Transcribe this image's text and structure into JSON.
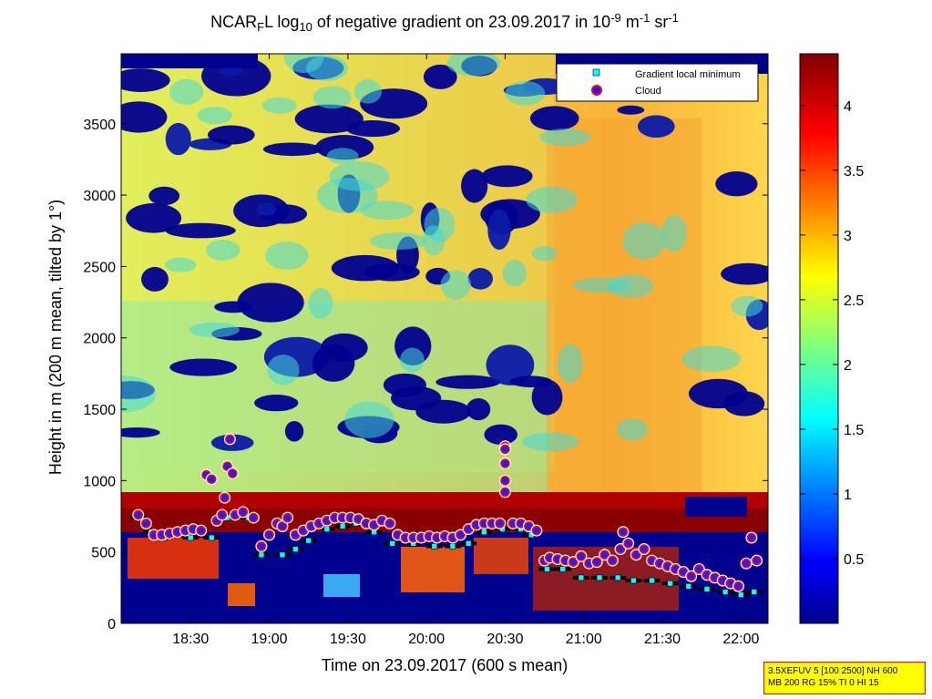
{
  "chart_data": {
    "type": "heatmap",
    "title": {
      "parts": [
        {
          "text": "NCAR",
          "style": "normal"
        },
        {
          "text": "F",
          "style": "sub"
        },
        {
          "text": "L log",
          "style": "normal"
        },
        {
          "text": "10",
          "style": "sub"
        },
        {
          "text": " of negative gradient on 23.09.2017 in 10",
          "style": "normal"
        },
        {
          "text": "-9",
          "style": "sup"
        },
        {
          "text": " m",
          "style": "normal"
        },
        {
          "text": "-1",
          "style": "sup"
        },
        {
          "text": " sr",
          "style": "normal"
        },
        {
          "text": "-1",
          "style": "sup"
        }
      ]
    },
    "xlabel": "Time on 23.09.2017 (600 s mean)",
    "ylabel": "Height in m (200 m mean, tilted by 1°)",
    "x_ticks": [
      "18:30",
      "19:00",
      "19:30",
      "20:00",
      "20:30",
      "21:00",
      "21:30",
      "22:00"
    ],
    "y_ticks": [
      "0",
      "500",
      "1000",
      "1500",
      "2000",
      "2500",
      "3000",
      "3500"
    ],
    "colorbar": {
      "ticks": [
        "0.5",
        "1",
        "1.5",
        "2",
        "2.5",
        "3",
        "3.5",
        "4"
      ],
      "range": [
        0,
        4.4
      ],
      "colormap": "jet"
    },
    "legend": {
      "placement": "top-right",
      "entries": [
        {
          "label": "Gradient local minimum",
          "marker": "square",
          "color": "#00ffff"
        },
        {
          "label": "Cloud",
          "marker": "circle",
          "color": "#ff0000"
        }
      ]
    },
    "gradient_local_minimum": [
      {
        "time": "18:10",
        "height": 740
      },
      {
        "time": "18:15",
        "height": 640
      },
      {
        "time": "18:20",
        "height": 600
      },
      {
        "time": "18:30",
        "height": 600
      },
      {
        "time": "18:38",
        "height": 600
      },
      {
        "time": "18:44",
        "height": 740
      },
      {
        "time": "18:52",
        "height": 740
      },
      {
        "time": "18:57",
        "height": 480
      },
      {
        "time": "19:05",
        "height": 480
      },
      {
        "time": "19:10",
        "height": 520
      },
      {
        "time": "19:15",
        "height": 580
      },
      {
        "time": "19:22",
        "height": 660
      },
      {
        "time": "19:28",
        "height": 680
      },
      {
        "time": "19:33",
        "height": 700
      },
      {
        "time": "19:40",
        "height": 640
      },
      {
        "time": "19:47",
        "height": 560
      },
      {
        "time": "19:55",
        "height": 560
      },
      {
        "time": "20:03",
        "height": 540
      },
      {
        "time": "20:10",
        "height": 540
      },
      {
        "time": "20:16",
        "height": 560
      },
      {
        "time": "20:22",
        "height": 640
      },
      {
        "time": "20:29",
        "height": 660
      },
      {
        "time": "20:36",
        "height": 660
      },
      {
        "time": "20:40",
        "height": 620
      },
      {
        "time": "20:46",
        "height": 380
      },
      {
        "time": "20:52",
        "height": 380
      },
      {
        "time": "20:59",
        "height": 320
      },
      {
        "time": "21:06",
        "height": 320
      },
      {
        "time": "21:13",
        "height": 320
      },
      {
        "time": "21:19",
        "height": 300
      },
      {
        "time": "21:26",
        "height": 300
      },
      {
        "time": "21:33",
        "height": 280
      },
      {
        "time": "21:40",
        "height": 260
      },
      {
        "time": "21:47",
        "height": 240
      },
      {
        "time": "21:54",
        "height": 220
      },
      {
        "time": "22:00",
        "height": 200
      },
      {
        "time": "22:05",
        "height": 220
      }
    ],
    "cloud": [
      {
        "time": "18:10",
        "height": 760
      },
      {
        "time": "18:13",
        "height": 700
      },
      {
        "time": "18:16",
        "height": 620
      },
      {
        "time": "18:19",
        "height": 620
      },
      {
        "time": "18:22",
        "height": 630
      },
      {
        "time": "18:25",
        "height": 640
      },
      {
        "time": "18:28",
        "height": 650
      },
      {
        "time": "18:31",
        "height": 660
      },
      {
        "time": "18:34",
        "height": 650
      },
      {
        "time": "18:36",
        "height": 1040
      },
      {
        "time": "18:38",
        "height": 1010
      },
      {
        "time": "18:40",
        "height": 720
      },
      {
        "time": "18:42",
        "height": 760
      },
      {
        "time": "18:43",
        "height": 880
      },
      {
        "time": "18:44",
        "height": 1100
      },
      {
        "time": "18:45",
        "height": 1290
      },
      {
        "time": "18:46",
        "height": 1050
      },
      {
        "time": "18:47",
        "height": 760
      },
      {
        "time": "18:50",
        "height": 780
      },
      {
        "time": "18:54",
        "height": 740
      },
      {
        "time": "18:57",
        "height": 540
      },
      {
        "time": "19:00",
        "height": 620
      },
      {
        "time": "19:03",
        "height": 700
      },
      {
        "time": "19:05",
        "height": 680
      },
      {
        "time": "19:07",
        "height": 740
      },
      {
        "time": "19:10",
        "height": 620
      },
      {
        "time": "19:13",
        "height": 650
      },
      {
        "time": "19:16",
        "height": 680
      },
      {
        "time": "19:19",
        "height": 700
      },
      {
        "time": "19:22",
        "height": 720
      },
      {
        "time": "19:25",
        "height": 740
      },
      {
        "time": "19:28",
        "height": 740
      },
      {
        "time": "19:31",
        "height": 740
      },
      {
        "time": "19:34",
        "height": 730
      },
      {
        "time": "19:37",
        "height": 700
      },
      {
        "time": "19:40",
        "height": 690
      },
      {
        "time": "19:43",
        "height": 720
      },
      {
        "time": "19:46",
        "height": 700
      },
      {
        "time": "19:49",
        "height": 620
      },
      {
        "time": "19:52",
        "height": 600
      },
      {
        "time": "19:55",
        "height": 600
      },
      {
        "time": "19:58",
        "height": 600
      },
      {
        "time": "20:01",
        "height": 610
      },
      {
        "time": "20:04",
        "height": 600
      },
      {
        "time": "20:07",
        "height": 610
      },
      {
        "time": "20:10",
        "height": 600
      },
      {
        "time": "20:13",
        "height": 620
      },
      {
        "time": "20:16",
        "height": 660
      },
      {
        "time": "20:19",
        "height": 690
      },
      {
        "time": "20:22",
        "height": 700
      },
      {
        "time": "20:25",
        "height": 700
      },
      {
        "time": "20:28",
        "height": 700
      },
      {
        "time": "20:30",
        "height": 1240
      },
      {
        "time": "20:30",
        "height": 1220
      },
      {
        "time": "20:30",
        "height": 1120
      },
      {
        "time": "20:30",
        "height": 1000
      },
      {
        "time": "20:30",
        "height": 920
      },
      {
        "time": "20:33",
        "height": 700
      },
      {
        "time": "20:36",
        "height": 700
      },
      {
        "time": "20:39",
        "height": 680
      },
      {
        "time": "20:42",
        "height": 650
      },
      {
        "time": "20:45",
        "height": 440
      },
      {
        "time": "20:47",
        "height": 460
      },
      {
        "time": "20:50",
        "height": 450
      },
      {
        "time": "20:53",
        "height": 440
      },
      {
        "time": "20:56",
        "height": 430
      },
      {
        "time": "20:59",
        "height": 470
      },
      {
        "time": "21:02",
        "height": 420
      },
      {
        "time": "21:05",
        "height": 430
      },
      {
        "time": "21:08",
        "height": 480
      },
      {
        "time": "21:11",
        "height": 440
      },
      {
        "time": "21:14",
        "height": 520
      },
      {
        "time": "21:15",
        "height": 640
      },
      {
        "time": "21:17",
        "height": 560
      },
      {
        "time": "21:20",
        "height": 480
      },
      {
        "time": "21:23",
        "height": 520
      },
      {
        "time": "21:26",
        "height": 440
      },
      {
        "time": "21:29",
        "height": 420
      },
      {
        "time": "21:32",
        "height": 400
      },
      {
        "time": "21:35",
        "height": 380
      },
      {
        "time": "21:38",
        "height": 360
      },
      {
        "time": "21:41",
        "height": 330
      },
      {
        "time": "21:44",
        "height": 380
      },
      {
        "time": "21:47",
        "height": 340
      },
      {
        "time": "21:50",
        "height": 320
      },
      {
        "time": "21:53",
        "height": 300
      },
      {
        "time": "21:56",
        "height": 280
      },
      {
        "time": "21:59",
        "height": 260
      },
      {
        "time": "22:02",
        "height": 420
      },
      {
        "time": "22:04",
        "height": 600
      },
      {
        "time": "22:06",
        "height": 440
      }
    ],
    "notes": [
      "3.5XEFUV 5 [100 2500] NH 600",
      "MB 200 RG 15% TI 0 HI 15"
    ]
  }
}
